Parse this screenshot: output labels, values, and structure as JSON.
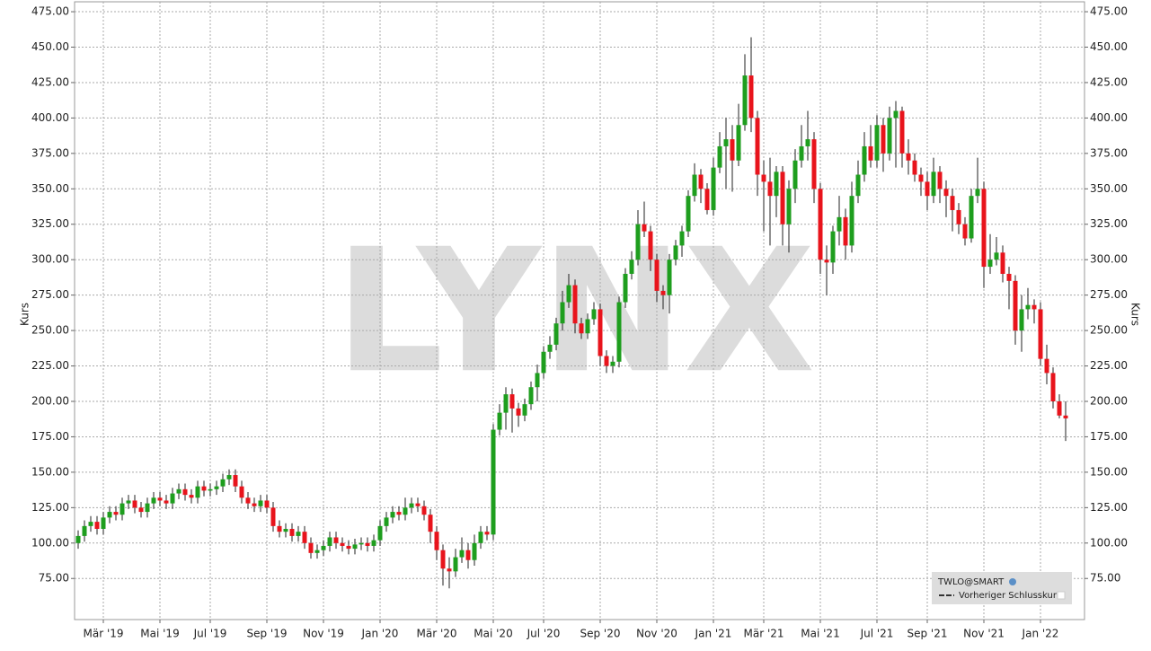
{
  "chart_data": {
    "type": "candlestick",
    "y_label": "Kurs",
    "watermark": "LYNX",
    "up_color": "#1e9e1e",
    "down_color": "#e8141c",
    "grid": true,
    "ylim": [
      46,
      482
    ],
    "yticks": [
      {
        "value": 75,
        "label": "75.00"
      },
      {
        "value": 100,
        "label": "100.00"
      },
      {
        "value": 125,
        "label": "125.00"
      },
      {
        "value": 150,
        "label": "150.00"
      },
      {
        "value": 175,
        "label": "175.00"
      },
      {
        "value": 200,
        "label": "200.00"
      },
      {
        "value": 225,
        "label": "225.00"
      },
      {
        "value": 250,
        "label": "250.00"
      },
      {
        "value": 275,
        "label": "275.00"
      },
      {
        "value": 300,
        "label": "300.00"
      },
      {
        "value": 325,
        "label": "325.00"
      },
      {
        "value": 350,
        "label": "350.00"
      },
      {
        "value": 375,
        "label": "375.00"
      },
      {
        "value": 400,
        "label": "400.00"
      },
      {
        "value": 425,
        "label": "425.00"
      },
      {
        "value": 450,
        "label": "450.00"
      },
      {
        "value": 475,
        "label": "475.00"
      }
    ],
    "categories": [
      null,
      null,
      null,
      null,
      "Mär '19",
      null,
      null,
      null,
      null,
      null,
      null,
      null,
      null,
      "Mai '19",
      null,
      null,
      null,
      null,
      null,
      null,
      null,
      "Jul '19",
      null,
      null,
      null,
      null,
      null,
      null,
      null,
      null,
      "Sep '19",
      null,
      null,
      null,
      null,
      null,
      null,
      null,
      null,
      "Nov '19",
      null,
      null,
      null,
      null,
      null,
      null,
      null,
      null,
      "Jan '20",
      null,
      null,
      null,
      null,
      null,
      null,
      null,
      null,
      "Mär '20",
      null,
      null,
      null,
      null,
      null,
      null,
      null,
      null,
      "Mai '20",
      null,
      null,
      null,
      null,
      null,
      null,
      null,
      "Jul '20",
      null,
      null,
      null,
      null,
      null,
      null,
      null,
      null,
      "Sep '20",
      null,
      null,
      null,
      null,
      null,
      null,
      null,
      null,
      "Nov '20",
      null,
      null,
      null,
      null,
      null,
      null,
      null,
      null,
      "Jan '21",
      null,
      null,
      null,
      null,
      null,
      null,
      null,
      "Mär '21",
      null,
      null,
      null,
      null,
      null,
      null,
      null,
      null,
      "Mai '21",
      null,
      null,
      null,
      null,
      null,
      null,
      null,
      null,
      "Jul '21",
      null,
      null,
      null,
      null,
      null,
      null,
      null,
      "Sep '21",
      null,
      null,
      null,
      null,
      null,
      null,
      null,
      null,
      "Nov '21",
      null,
      null,
      null,
      null,
      null,
      null,
      null,
      null,
      "Jan '22",
      null,
      null,
      null,
      null
    ],
    "series": [
      {
        "name": "TWLO@SMART",
        "open": [
          100,
          105,
          112,
          115,
          110,
          118,
          122,
          120,
          128,
          130,
          125,
          122,
          128,
          132,
          130,
          128,
          135,
          138,
          134,
          132,
          140,
          137,
          138,
          140,
          145,
          148,
          140,
          132,
          128,
          126,
          130,
          125,
          112,
          108,
          110,
          105,
          108,
          100,
          93,
          95,
          98,
          104,
          100,
          98,
          96,
          99,
          100,
          98,
          102,
          112,
          118,
          122,
          120,
          125,
          128,
          126,
          120,
          108,
          95,
          82,
          80,
          90,
          95,
          88,
          100,
          108,
          106,
          180,
          192,
          205,
          195,
          190,
          198,
          210,
          220,
          235,
          240,
          255,
          270,
          282,
          255,
          248,
          258,
          265,
          232,
          225,
          228,
          270,
          290,
          300,
          325,
          320,
          300,
          278,
          275,
          300,
          310,
          320,
          345,
          360,
          350,
          335,
          365,
          380,
          385,
          370,
          395,
          430,
          400,
          360,
          355,
          345,
          362,
          325,
          350,
          370,
          380,
          385,
          350,
          300,
          298,
          320,
          330,
          310,
          345,
          360,
          380,
          370,
          395,
          375,
          400,
          405,
          375,
          370,
          360,
          355,
          345,
          362,
          350,
          345,
          335,
          325,
          315,
          345,
          350,
          295,
          300,
          305,
          290,
          285,
          250,
          265,
          268,
          265,
          230,
          220,
          200,
          190
        ],
        "high": [
          109,
          116,
          119,
          119,
          122,
          126,
          126,
          132,
          134,
          134,
          129,
          132,
          136,
          136,
          134,
          139,
          142,
          142,
          138,
          144,
          144,
          142,
          144,
          149,
          152,
          152,
          144,
          136,
          132,
          134,
          134,
          129,
          116,
          114,
          114,
          112,
          112,
          104,
          99,
          102,
          108,
          108,
          104,
          102,
          103,
          104,
          104,
          106,
          116,
          122,
          126,
          126,
          132,
          132,
          132,
          130,
          124,
          112,
          99,
          90,
          96,
          104,
          100,
          106,
          112,
          112,
          184,
          198,
          210,
          209,
          199,
          202,
          214,
          226,
          239,
          246,
          259,
          278,
          290,
          286,
          259,
          262,
          270,
          269,
          236,
          232,
          274,
          294,
          306,
          335,
          341,
          324,
          304,
          282,
          304,
          314,
          324,
          349,
          368,
          364,
          354,
          372,
          390,
          400,
          395,
          410,
          445,
          457,
          405,
          370,
          372,
          366,
          366,
          356,
          378,
          395,
          405,
          390,
          354,
          310,
          324,
          345,
          336,
          355,
          370,
          390,
          395,
          402,
          400,
          408,
          412,
          408,
          385,
          375,
          365,
          362,
          372,
          366,
          356,
          350,
          340,
          330,
          350,
          372,
          355,
          318,
          316,
          310,
          295,
          289,
          275,
          280,
          272,
          270,
          240,
          224,
          205,
          200
        ],
        "low": [
          96,
          101,
          108,
          106,
          106,
          114,
          116,
          116,
          124,
          121,
          118,
          118,
          124,
          126,
          124,
          124,
          131,
          130,
          128,
          128,
          133,
          133,
          134,
          136,
          141,
          136,
          128,
          124,
          122,
          122,
          121,
          108,
          104,
          104,
          101,
          101,
          96,
          89,
          89,
          91,
          94,
          96,
          94,
          92,
          92,
          95,
          94,
          94,
          98,
          108,
          114,
          116,
          116,
          121,
          122,
          116,
          100,
          88,
          70,
          68,
          76,
          86,
          82,
          84,
          96,
          102,
          102,
          176,
          180,
          178,
          182,
          186,
          194,
          200,
          216,
          230,
          236,
          250,
          266,
          248,
          244,
          244,
          254,
          225,
          220,
          220,
          224,
          266,
          286,
          296,
          316,
          292,
          270,
          265,
          262,
          296,
          302,
          316,
          341,
          340,
          332,
          331,
          361,
          350,
          348,
          366,
          391,
          390,
          345,
          320,
          310,
          330,
          310,
          305,
          340,
          365,
          370,
          340,
          290,
          275,
          290,
          310,
          300,
          305,
          340,
          355,
          365,
          365,
          362,
          370,
          365,
          365,
          360,
          355,
          345,
          335,
          340,
          340,
          330,
          320,
          318,
          310,
          312,
          340,
          280,
          290,
          296,
          284,
          265,
          240,
          235,
          258,
          255,
          225,
          212,
          195,
          188,
          172
        ],
        "close": [
          105,
          112,
          115,
          110,
          118,
          122,
          120,
          128,
          130,
          125,
          122,
          128,
          132,
          130,
          128,
          135,
          138,
          134,
          132,
          140,
          137,
          138,
          140,
          145,
          148,
          140,
          132,
          128,
          126,
          130,
          125,
          112,
          108,
          110,
          105,
          108,
          100,
          93,
          95,
          98,
          104,
          100,
          98,
          96,
          99,
          100,
          98,
          102,
          112,
          118,
          122,
          120,
          125,
          128,
          126,
          120,
          108,
          95,
          82,
          80,
          90,
          95,
          88,
          100,
          108,
          106,
          180,
          192,
          205,
          195,
          190,
          198,
          210,
          220,
          235,
          240,
          255,
          270,
          282,
          255,
          248,
          258,
          265,
          232,
          225,
          228,
          270,
          290,
          300,
          325,
          320,
          300,
          278,
          275,
          300,
          310,
          320,
          345,
          360,
          350,
          335,
          365,
          380,
          385,
          370,
          395,
          430,
          400,
          360,
          355,
          345,
          362,
          325,
          350,
          370,
          380,
          385,
          350,
          300,
          298,
          320,
          330,
          310,
          345,
          360,
          380,
          370,
          395,
          375,
          400,
          405,
          375,
          370,
          360,
          355,
          345,
          362,
          350,
          345,
          335,
          325,
          315,
          345,
          350,
          295,
          300,
          305,
          290,
          285,
          250,
          265,
          268,
          265,
          230,
          220,
          200,
          190,
          188
        ]
      }
    ],
    "reference_label": "Vorheriger Schlusskurs"
  }
}
